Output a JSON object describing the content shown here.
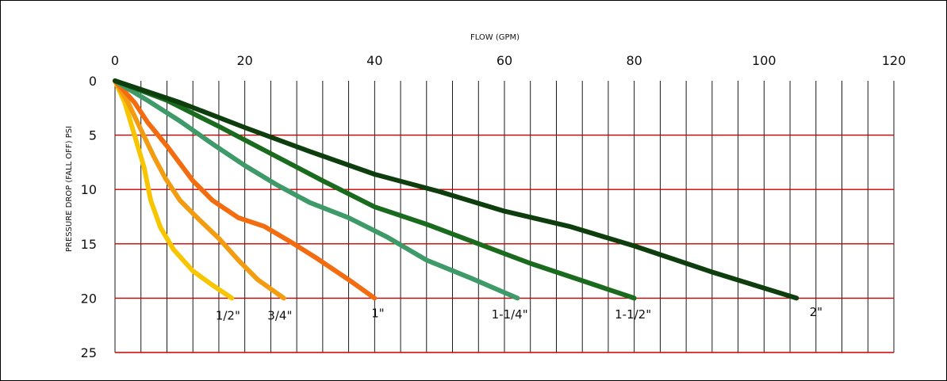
{
  "chart_data": {
    "type": "line",
    "title": "",
    "xlabel": "FLOW (GPM)",
    "ylabel": "PRESSURE DROP (FALL OFF) PSI",
    "xlim": [
      0,
      120
    ],
    "ylim": [
      0,
      25
    ],
    "y_inverted": true,
    "x_axis_position": "top",
    "x_ticks": [
      0,
      20,
      40,
      60,
      80,
      100,
      120
    ],
    "y_ticks": [
      0,
      5,
      10,
      15,
      20,
      25
    ],
    "x_minor_gridline_step": 4,
    "grid_colors": {
      "vertical": "#000000",
      "horizontal": "#cc0000"
    },
    "series": [
      {
        "name": "1/2\"",
        "color": "#f7c600",
        "points": [
          [
            0,
            0
          ],
          [
            1.5,
            2
          ],
          [
            3,
            5
          ],
          [
            4.5,
            8
          ],
          [
            5.5,
            11
          ],
          [
            7,
            13.5
          ],
          [
            9,
            15.5
          ],
          [
            12,
            17.5
          ],
          [
            15,
            18.8
          ],
          [
            18,
            20
          ]
        ]
      },
      {
        "name": "3/4\"",
        "color": "#f39c12",
        "points": [
          [
            0,
            0
          ],
          [
            2,
            2
          ],
          [
            4,
            4.5
          ],
          [
            6,
            7
          ],
          [
            7.8,
            9
          ],
          [
            10,
            11
          ],
          [
            13,
            12.8
          ],
          [
            16,
            14.5
          ],
          [
            19,
            16.5
          ],
          [
            22,
            18.3
          ],
          [
            26,
            20
          ]
        ]
      },
      {
        "name": "1\"",
        "color": "#f36c10",
        "points": [
          [
            0,
            0
          ],
          [
            3,
            2
          ],
          [
            5,
            3.8
          ],
          [
            8,
            6
          ],
          [
            12,
            9.2
          ],
          [
            15,
            11
          ],
          [
            19,
            12.6
          ],
          [
            23,
            13.4
          ],
          [
            27,
            14.8
          ],
          [
            31,
            16.3
          ],
          [
            36,
            18.3
          ],
          [
            40,
            20
          ]
        ]
      },
      {
        "name": "1-1/4\"",
        "color": "#3e9a68",
        "points": [
          [
            0,
            0
          ],
          [
            5,
            1.8
          ],
          [
            10,
            3.7
          ],
          [
            15,
            5.8
          ],
          [
            20,
            7.8
          ],
          [
            25,
            9.6
          ],
          [
            30,
            11.2
          ],
          [
            36,
            12.6
          ],
          [
            42,
            14.4
          ],
          [
            48,
            16.5
          ],
          [
            55,
            18.2
          ],
          [
            62,
            20
          ]
        ]
      },
      {
        "name": "1-1/2\"",
        "color": "#1b6b1f",
        "points": [
          [
            0,
            0
          ],
          [
            8,
            1.8
          ],
          [
            16,
            4.2
          ],
          [
            24,
            6.7
          ],
          [
            32,
            9.2
          ],
          [
            40,
            11.6
          ],
          [
            48,
            13.2
          ],
          [
            56,
            15
          ],
          [
            64,
            16.8
          ],
          [
            72,
            18.4
          ],
          [
            80,
            20
          ]
        ]
      },
      {
        "name": "2\"",
        "color": "#0e3d0e",
        "points": [
          [
            0,
            0
          ],
          [
            10,
            2
          ],
          [
            20,
            4.3
          ],
          [
            30,
            6.5
          ],
          [
            40,
            8.6
          ],
          [
            50,
            10.2
          ],
          [
            60,
            12
          ],
          [
            70,
            13.4
          ],
          [
            80,
            15.2
          ],
          [
            92,
            17.6
          ],
          [
            105,
            20
          ]
        ]
      }
    ],
    "labels": [
      {
        "series": "1/2\"",
        "text": "1/2\"",
        "at": [
          15.5,
          21.6
        ]
      },
      {
        "series": "3/4\"",
        "text": "3/4\"",
        "at": [
          23.5,
          21.6
        ]
      },
      {
        "series": "1\"",
        "text": "1\"",
        "at": [
          39.5,
          21.4
        ]
      },
      {
        "series": "1-1/4\"",
        "text": "1-1/4\"",
        "at": [
          58,
          21.5
        ]
      },
      {
        "series": "1-1/2\"",
        "text": "1-1/2\"",
        "at": [
          77,
          21.5
        ]
      },
      {
        "series": "2\"",
        "text": "2\"",
        "at": [
          107,
          21.3
        ]
      }
    ]
  }
}
